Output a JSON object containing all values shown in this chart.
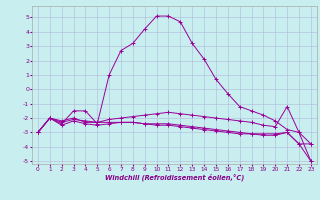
{
  "xlabel": "Windchill (Refroidissement éolien,°C)",
  "bg_color": "#c8eef0",
  "grid_color": "#b0b8d8",
  "line_color": "#990099",
  "xlim": [
    -0.5,
    23.5
  ],
  "ylim": [
    -5.2,
    5.8
  ],
  "xticks": [
    0,
    1,
    2,
    3,
    4,
    5,
    6,
    7,
    8,
    9,
    10,
    11,
    12,
    13,
    14,
    15,
    16,
    17,
    18,
    19,
    20,
    21,
    22,
    23
  ],
  "yticks": [
    -5,
    -4,
    -3,
    -2,
    -1,
    0,
    1,
    2,
    3,
    4,
    5
  ],
  "series1_x": [
    0,
    1,
    2,
    3,
    4,
    5,
    6,
    7,
    8,
    9,
    10,
    11,
    12,
    13,
    14,
    15,
    16,
    17,
    18,
    19,
    20,
    21,
    22,
    23
  ],
  "series1_y": [
    -3.0,
    -2.0,
    -2.4,
    -1.5,
    -1.5,
    -2.4,
    1.0,
    2.7,
    3.2,
    4.2,
    5.1,
    5.1,
    4.7,
    3.2,
    2.1,
    0.7,
    -0.3,
    -1.2,
    -1.5,
    -1.8,
    -2.2,
    -2.8,
    -3.0,
    -5.0
  ],
  "series2_x": [
    0,
    1,
    2,
    3,
    4,
    5,
    6,
    7,
    8,
    9,
    10,
    11,
    12,
    13,
    14,
    15,
    16,
    17,
    18,
    19,
    20,
    21,
    22,
    23
  ],
  "series2_y": [
    -3.0,
    -2.0,
    -2.2,
    -2.0,
    -2.3,
    -2.3,
    -2.3,
    -2.3,
    -2.3,
    -2.4,
    -2.5,
    -2.5,
    -2.6,
    -2.7,
    -2.8,
    -2.9,
    -3.0,
    -3.1,
    -3.1,
    -3.1,
    -3.1,
    -3.0,
    -3.8,
    -5.0
  ],
  "series3_x": [
    0,
    1,
    2,
    3,
    4,
    5,
    6,
    7,
    8,
    9,
    10,
    11,
    12,
    13,
    14,
    15,
    16,
    17,
    18,
    19,
    20,
    21,
    22,
    23
  ],
  "series3_y": [
    -3.0,
    -2.0,
    -2.5,
    -2.2,
    -2.4,
    -2.5,
    -2.4,
    -2.3,
    -2.3,
    -2.4,
    -2.4,
    -2.4,
    -2.5,
    -2.6,
    -2.7,
    -2.8,
    -2.9,
    -3.0,
    -3.1,
    -3.2,
    -3.2,
    -3.0,
    -3.8,
    -3.8
  ],
  "series4_x": [
    0,
    1,
    2,
    3,
    4,
    5,
    6,
    7,
    8,
    9,
    10,
    11,
    12,
    13,
    14,
    15,
    16,
    17,
    18,
    19,
    20,
    21,
    22,
    23
  ],
  "series4_y": [
    -3.0,
    -2.0,
    -2.3,
    -2.1,
    -2.2,
    -2.3,
    -2.1,
    -2.0,
    -1.9,
    -1.8,
    -1.7,
    -1.6,
    -1.7,
    -1.8,
    -1.9,
    -2.0,
    -2.1,
    -2.2,
    -2.3,
    -2.5,
    -2.6,
    -1.2,
    -3.0,
    -3.8
  ]
}
